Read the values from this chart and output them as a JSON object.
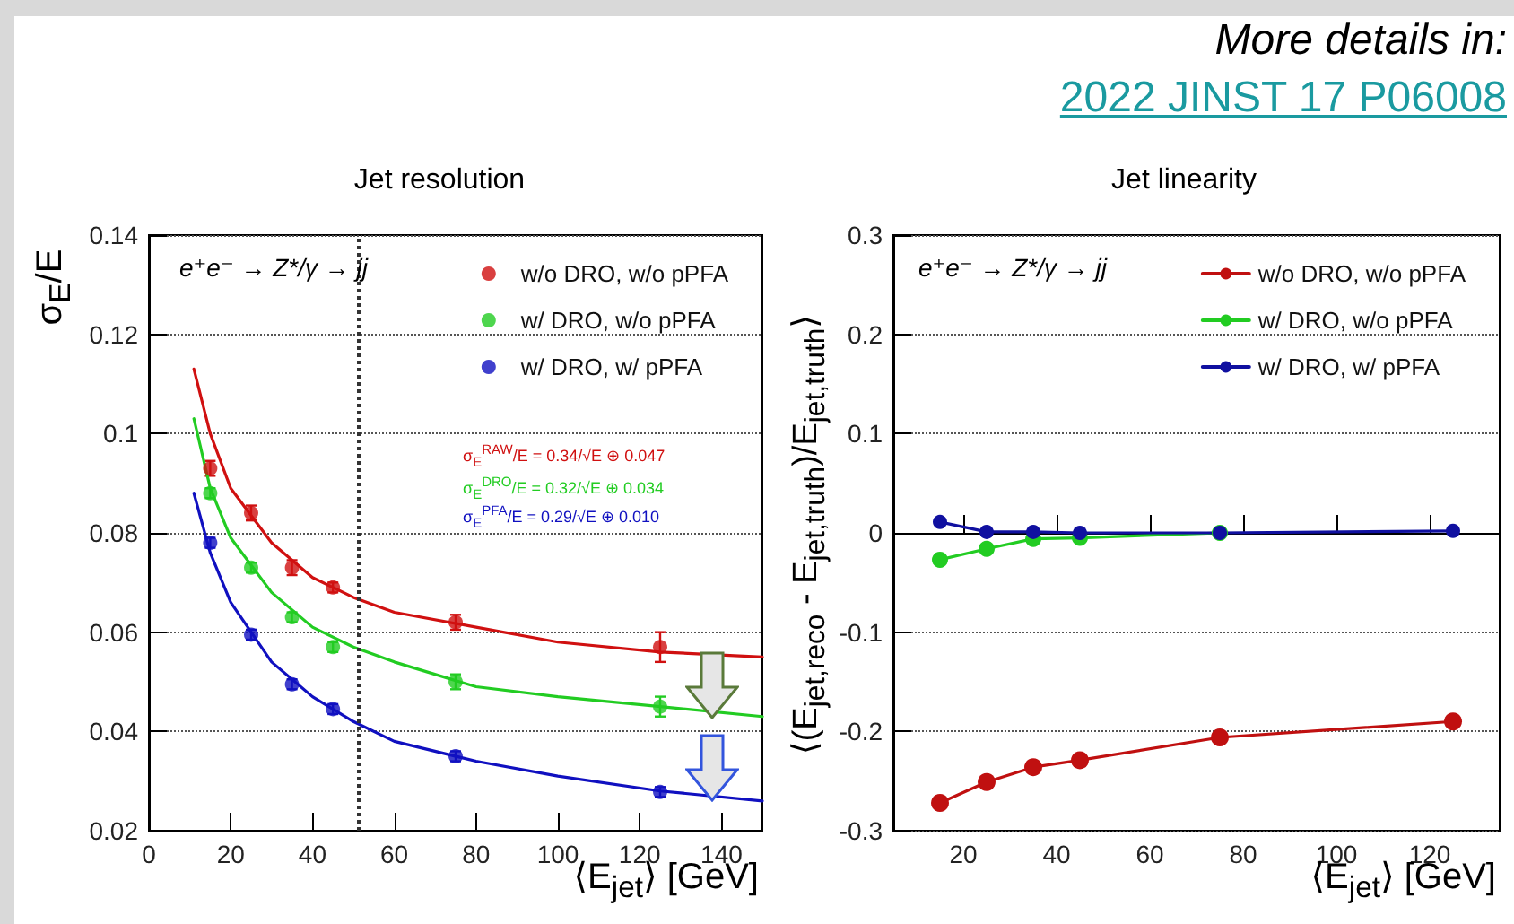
{
  "chart_data": [
    {
      "type": "scatter",
      "title": "Jet resolution",
      "xlabel": "⟨E$_{jet}$⟩ [GeV]",
      "ylabel": "σ$_{E}$/E",
      "annotations": [
        "e⁺e⁻ → Z*/γ → jj",
        "σ$_{E}$$^{RAW}$/E = 0.34/√E ⊕ 0.047",
        "σ$_{E}$$^{DRO}$/E = 0.32/√E ⊕ 0.034",
        "σ$_{E}$$^{PFA}$/E = 0.29/√E ⊕ 0.010"
      ],
      "x": [
        15,
        25,
        35,
        45,
        75,
        125
      ],
      "series": [
        {
          "name": "w/o DRO, w/o pPFA",
          "color": "#d01010",
          "values": [
            0.093,
            0.084,
            0.073,
            0.069,
            0.062,
            0.057
          ],
          "errors": [
            0.0015,
            0.0015,
            0.0015,
            0.001,
            0.0015,
            0.003
          ]
        },
        {
          "name": "w/ DRO, w/o pPFA",
          "color": "#22cc22",
          "values": [
            0.088,
            0.073,
            0.063,
            0.057,
            0.05,
            0.045
          ],
          "errors": [
            0.001,
            0.001,
            0.001,
            0.001,
            0.0015,
            0.002
          ]
        },
        {
          "name": "w/ DRO, w/ pPFA",
          "color": "#1010c0",
          "values": [
            0.078,
            0.0595,
            0.0495,
            0.0445,
            0.035,
            0.0278
          ],
          "errors": [
            0.001,
            0.001,
            0.001,
            0.001,
            0.001,
            0.001
          ]
        },
        {
          "type": "line",
          "marker": "none",
          "color": "#d01010",
          "x": [
            11,
            15,
            20,
            30,
            40,
            50,
            60,
            80,
            100,
            125,
            150
          ],
          "values": [
            0.113,
            0.1,
            0.089,
            0.078,
            0.071,
            0.067,
            0.064,
            0.061,
            0.058,
            0.056,
            0.055
          ]
        },
        {
          "type": "line",
          "marker": "none",
          "color": "#22cc22",
          "x": [
            11,
            15,
            20,
            30,
            40,
            50,
            60,
            80,
            100,
            125,
            150
          ],
          "values": [
            0.103,
            0.089,
            0.079,
            0.068,
            0.061,
            0.057,
            0.054,
            0.049,
            0.047,
            0.045,
            0.043
          ]
        },
        {
          "type": "line",
          "marker": "none",
          "color": "#1010c0",
          "x": [
            11,
            15,
            20,
            30,
            40,
            50,
            60,
            80,
            100,
            125,
            150
          ],
          "values": [
            0.088,
            0.076,
            0.066,
            0.054,
            0.047,
            0.042,
            0.038,
            0.034,
            0.031,
            0.028,
            0.026
          ]
        }
      ],
      "xlim": [
        0,
        150
      ],
      "xticks": [
        0,
        20,
        40,
        60,
        80,
        100,
        120,
        140
      ],
      "ylim": [
        0.02,
        0.14
      ],
      "yticks": [
        0.02,
        0.04,
        0.06,
        0.08,
        0.1,
        0.12,
        0.14
      ],
      "grid": "y",
      "legend": "top right",
      "marker": "circle",
      "ref_lines": [
        {
          "axis": "x",
          "value": 51,
          "line_style": "dotted"
        }
      ]
    },
    {
      "type": "line",
      "title": "Jet linearity",
      "xlabel": "⟨E$_{jet}$⟩ [GeV]",
      "ylabel": "⟨(E$_{jet,reco}$ - E$_{jet,truth}$)/E$_{jet,truth}$⟩",
      "annotations": [
        "e⁺e⁻ → Z*/γ → jj",
        "More details in:",
        "2022 JINST 17 P06008"
      ],
      "x": [
        15,
        25,
        35,
        45,
        75,
        125
      ],
      "series": [
        {
          "name": "w/o DRO, w/o pPFA",
          "color": "#c01010",
          "values": [
            -0.272,
            -0.251,
            -0.236,
            -0.229,
            -0.206,
            -0.19
          ]
        },
        {
          "name": "w/ DRO, w/o pPFA",
          "color": "#22cc22",
          "values": [
            -0.027,
            -0.016,
            -0.006,
            -0.005,
            0,
            null
          ]
        },
        {
          "name": "w/ DRO, w/ pPFA",
          "color": "#1010a0",
          "values": [
            0.011,
            0.001,
            0.001,
            0,
            0,
            0.002
          ]
        }
      ],
      "xlim": [
        5,
        135
      ],
      "xticks": [
        20,
        40,
        60,
        80,
        100,
        120
      ],
      "ylim": [
        -0.3,
        0.3
      ],
      "yticks": [
        -0.3,
        -0.2,
        -0.1,
        0,
        0.1,
        0.2,
        0.3
      ],
      "grid": "y",
      "legend": "top right",
      "marker": "circle"
    }
  ]
}
